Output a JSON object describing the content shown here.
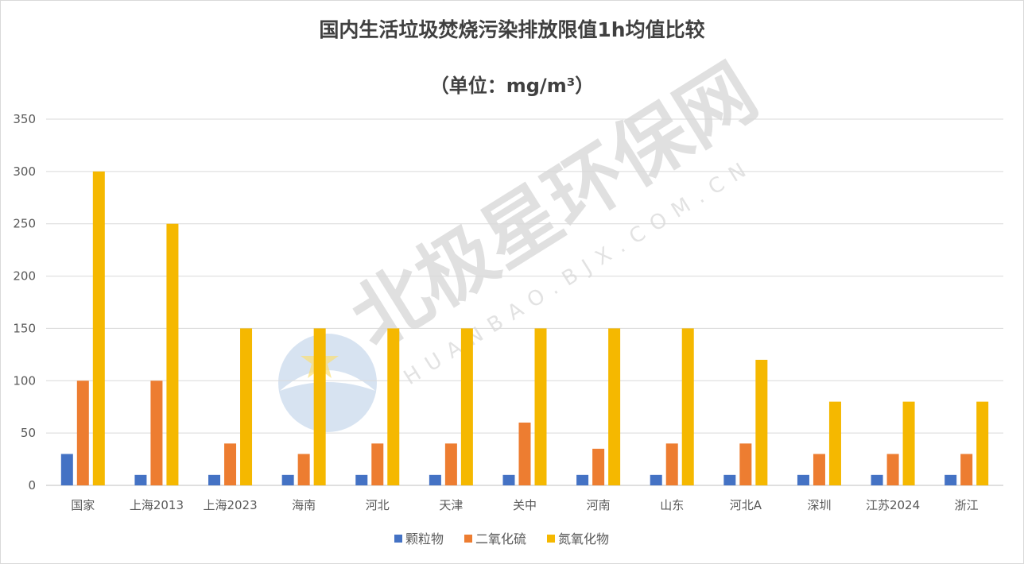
{
  "chart_data": {
    "type": "bar",
    "title": "国内生活垃圾焚烧污染排放限值1h均值比较",
    "subtitle": "（单位：mg/m³）",
    "categories": [
      "国家",
      "上海2013",
      "上海2023",
      "海南",
      "河北",
      "天津",
      "关中",
      "河南",
      "山东",
      "河北A",
      "深圳",
      "江苏2024",
      "浙江"
    ],
    "series": [
      {
        "name": "颗粒物",
        "color": "#4472c4",
        "values": [
          30,
          10,
          10,
          10,
          10,
          10,
          10,
          10,
          10,
          10,
          10,
          10,
          10
        ]
      },
      {
        "name": "二氧化硫",
        "color": "#ed7d31",
        "values": [
          100,
          100,
          40,
          30,
          40,
          40,
          60,
          35,
          40,
          40,
          30,
          30,
          30
        ]
      },
      {
        "name": "氮氧化物",
        "color": "#f5b800",
        "values": [
          300,
          250,
          150,
          150,
          150,
          150,
          150,
          150,
          150,
          120,
          80,
          80,
          80
        ]
      }
    ],
    "ylim": [
      0,
      350
    ],
    "yticks": [
      0,
      50,
      100,
      150,
      200,
      250,
      300,
      350
    ],
    "grid": true,
    "legend": "bottom"
  },
  "watermark": {
    "text": "北极星环保网",
    "subtext": "HUANBAO.BJX.COM.CN"
  }
}
